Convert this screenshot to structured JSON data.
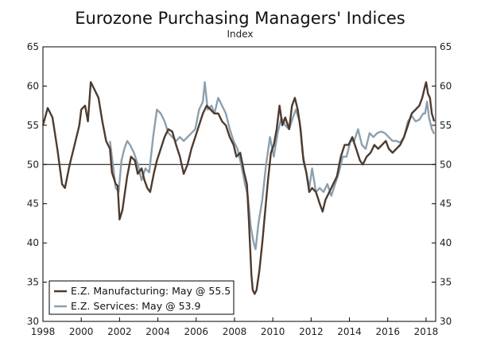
{
  "chart_data": {
    "type": "line",
    "title": "Eurozone Purchasing Managers' Indices",
    "subtitle": "Index",
    "xlabel": "",
    "ylabel": "",
    "xlim": [
      1998,
      2018.5
    ],
    "ylim": [
      30,
      65
    ],
    "x_ticks": [
      "1998",
      "2000",
      "2002",
      "2004",
      "2006",
      "2008",
      "2010",
      "2012",
      "2014",
      "2016",
      "2018"
    ],
    "y_ticks": [
      "30",
      "35",
      "40",
      "45",
      "50",
      "55",
      "60",
      "65"
    ],
    "reference_line": 50,
    "legend": [
      "E.Z. Manufacturing: May @ 55.5",
      "E.Z. Services: May @ 53.9"
    ],
    "series": [
      {
        "name": "E.Z. Manufacturing: May @ 55.5",
        "color": "#4d3b2f",
        "points": [
          [
            1998.0,
            55.0
          ],
          [
            1998.25,
            57.2
          ],
          [
            1998.5,
            56.0
          ],
          [
            1998.75,
            52.0
          ],
          [
            1999.0,
            47.5
          ],
          [
            1999.15,
            47.0
          ],
          [
            1999.4,
            50.0
          ],
          [
            1999.6,
            52.0
          ],
          [
            1999.9,
            55.0
          ],
          [
            2000.0,
            57.0
          ],
          [
            2000.2,
            57.5
          ],
          [
            2000.35,
            55.5
          ],
          [
            2000.5,
            60.5
          ],
          [
            2000.7,
            59.5
          ],
          [
            2000.9,
            58.5
          ],
          [
            2001.1,
            55.5
          ],
          [
            2001.3,
            53.0
          ],
          [
            2001.5,
            52.0
          ],
          [
            2001.6,
            49.0
          ],
          [
            2001.8,
            47.5
          ],
          [
            2001.9,
            47.3
          ],
          [
            2002.0,
            43.0
          ],
          [
            2002.15,
            44.2
          ],
          [
            2002.4,
            48.5
          ],
          [
            2002.6,
            51.0
          ],
          [
            2002.8,
            50.5
          ],
          [
            2002.95,
            48.8
          ],
          [
            2003.15,
            49.5
          ],
          [
            2003.3,
            48.0
          ],
          [
            2003.45,
            47.0
          ],
          [
            2003.6,
            46.5
          ],
          [
            2003.8,
            49.0
          ],
          [
            2003.95,
            50.5
          ],
          [
            2004.15,
            52.0
          ],
          [
            2004.35,
            53.5
          ],
          [
            2004.55,
            54.5
          ],
          [
            2004.75,
            54.2
          ],
          [
            2004.95,
            52.5
          ],
          [
            2005.15,
            51.0
          ],
          [
            2005.35,
            48.8
          ],
          [
            2005.55,
            50.0
          ],
          [
            2005.75,
            52.0
          ],
          [
            2005.95,
            53.5
          ],
          [
            2006.15,
            55.0
          ],
          [
            2006.35,
            56.5
          ],
          [
            2006.55,
            57.5
          ],
          [
            2006.75,
            57.0
          ],
          [
            2006.95,
            56.5
          ],
          [
            2007.15,
            56.5
          ],
          [
            2007.35,
            55.5
          ],
          [
            2007.55,
            55.0
          ],
          [
            2007.75,
            53.5
          ],
          [
            2007.95,
            52.5
          ],
          [
            2008.1,
            51.0
          ],
          [
            2008.3,
            51.5
          ],
          [
            2008.5,
            49.0
          ],
          [
            2008.65,
            47.5
          ],
          [
            2008.75,
            43.0
          ],
          [
            2008.88,
            36.0
          ],
          [
            2008.95,
            34.0
          ],
          [
            2009.05,
            33.5
          ],
          [
            2009.15,
            34.0
          ],
          [
            2009.3,
            36.5
          ],
          [
            2009.45,
            40.0
          ],
          [
            2009.6,
            44.0
          ],
          [
            2009.75,
            48.0
          ],
          [
            2009.9,
            51.5
          ],
          [
            2010.05,
            52.5
          ],
          [
            2010.2,
            54.5
          ],
          [
            2010.35,
            57.5
          ],
          [
            2010.5,
            55.0
          ],
          [
            2010.65,
            56.0
          ],
          [
            2010.85,
            54.5
          ],
          [
            2011.0,
            57.5
          ],
          [
            2011.15,
            58.5
          ],
          [
            2011.3,
            57.0
          ],
          [
            2011.45,
            54.5
          ],
          [
            2011.6,
            50.5
          ],
          [
            2011.75,
            49.0
          ],
          [
            2011.9,
            46.5
          ],
          [
            2012.05,
            47.0
          ],
          [
            2012.25,
            46.5
          ],
          [
            2012.45,
            45.0
          ],
          [
            2012.6,
            44.0
          ],
          [
            2012.75,
            45.5
          ],
          [
            2012.95,
            46.5
          ],
          [
            2013.15,
            47.5
          ],
          [
            2013.35,
            48.5
          ],
          [
            2013.55,
            51.0
          ],
          [
            2013.75,
            52.5
          ],
          [
            2013.95,
            52.5
          ],
          [
            2014.15,
            53.5
          ],
          [
            2014.35,
            52.0
          ],
          [
            2014.55,
            50.5
          ],
          [
            2014.7,
            50.0
          ],
          [
            2014.9,
            51.0
          ],
          [
            2015.1,
            51.5
          ],
          [
            2015.3,
            52.5
          ],
          [
            2015.5,
            52.0
          ],
          [
            2015.7,
            52.5
          ],
          [
            2015.9,
            53.0
          ],
          [
            2016.05,
            52.0
          ],
          [
            2016.25,
            51.5
          ],
          [
            2016.45,
            52.0
          ],
          [
            2016.65,
            52.5
          ],
          [
            2016.85,
            53.5
          ],
          [
            2017.05,
            55.0
          ],
          [
            2017.25,
            56.5
          ],
          [
            2017.45,
            57.0
          ],
          [
            2017.65,
            57.5
          ],
          [
            2017.8,
            58.5
          ],
          [
            2017.95,
            60.0
          ],
          [
            2018.0,
            60.5
          ],
          [
            2018.1,
            59.0
          ],
          [
            2018.2,
            58.5
          ],
          [
            2018.3,
            56.5
          ],
          [
            2018.42,
            55.5
          ]
        ]
      },
      {
        "name": "E.Z. Services: May @ 53.9",
        "color": "#8ca0ae",
        "points": [
          [
            2001.5,
            53.0
          ],
          [
            2001.65,
            50.0
          ],
          [
            2001.8,
            47.0
          ],
          [
            2001.95,
            46.5
          ],
          [
            2002.1,
            50.5
          ],
          [
            2002.25,
            52.0
          ],
          [
            2002.4,
            53.0
          ],
          [
            2002.55,
            52.5
          ],
          [
            2002.75,
            51.5
          ],
          [
            2002.95,
            50.0
          ],
          [
            2003.15,
            48.0
          ],
          [
            2003.35,
            49.5
          ],
          [
            2003.55,
            49.0
          ],
          [
            2003.75,
            53.5
          ],
          [
            2003.95,
            57.0
          ],
          [
            2004.15,
            56.5
          ],
          [
            2004.35,
            55.5
          ],
          [
            2004.55,
            54.0
          ],
          [
            2004.75,
            53.5
          ],
          [
            2004.95,
            53.0
          ],
          [
            2005.15,
            53.5
          ],
          [
            2005.35,
            53.0
          ],
          [
            2005.55,
            53.5
          ],
          [
            2005.75,
            54.0
          ],
          [
            2005.95,
            54.5
          ],
          [
            2006.15,
            57.0
          ],
          [
            2006.35,
            58.0
          ],
          [
            2006.45,
            60.5
          ],
          [
            2006.6,
            57.0
          ],
          [
            2006.8,
            57.5
          ],
          [
            2006.95,
            56.5
          ],
          [
            2007.15,
            58.5
          ],
          [
            2007.35,
            57.5
          ],
          [
            2007.55,
            56.5
          ],
          [
            2007.75,
            54.5
          ],
          [
            2007.95,
            53.0
          ],
          [
            2008.15,
            52.0
          ],
          [
            2008.35,
            50.0
          ],
          [
            2008.55,
            47.5
          ],
          [
            2008.7,
            46.0
          ],
          [
            2008.85,
            42.0
          ],
          [
            2009.0,
            40.0
          ],
          [
            2009.1,
            39.2
          ],
          [
            2009.25,
            42.5
          ],
          [
            2009.45,
            45.5
          ],
          [
            2009.65,
            50.0
          ],
          [
            2009.85,
            53.5
          ],
          [
            2010.05,
            51.0
          ],
          [
            2010.25,
            54.0
          ],
          [
            2010.45,
            56.0
          ],
          [
            2010.65,
            55.0
          ],
          [
            2010.85,
            54.5
          ],
          [
            2011.05,
            56.0
          ],
          [
            2011.2,
            57.0
          ],
          [
            2011.4,
            55.5
          ],
          [
            2011.55,
            51.5
          ],
          [
            2011.75,
            49.0
          ],
          [
            2011.9,
            47.0
          ],
          [
            2012.05,
            49.5
          ],
          [
            2012.25,
            46.5
          ],
          [
            2012.45,
            47.0
          ],
          [
            2012.65,
            46.5
          ],
          [
            2012.85,
            47.5
          ],
          [
            2013.05,
            46.0
          ],
          [
            2013.25,
            47.5
          ],
          [
            2013.45,
            49.0
          ],
          [
            2013.65,
            51.0
          ],
          [
            2013.85,
            51.0
          ],
          [
            2014.05,
            53.0
          ],
          [
            2014.25,
            53.0
          ],
          [
            2014.45,
            54.5
          ],
          [
            2014.65,
            52.5
          ],
          [
            2014.85,
            52.0
          ],
          [
            2015.05,
            54.0
          ],
          [
            2015.25,
            53.5
          ],
          [
            2015.45,
            54.0
          ],
          [
            2015.65,
            54.2
          ],
          [
            2015.85,
            54.0
          ],
          [
            2016.05,
            53.5
          ],
          [
            2016.25,
            53.0
          ],
          [
            2016.45,
            53.0
          ],
          [
            2016.65,
            52.8
          ],
          [
            2016.85,
            53.5
          ],
          [
            2017.05,
            55.5
          ],
          [
            2017.25,
            56.2
          ],
          [
            2017.45,
            55.5
          ],
          [
            2017.65,
            55.7
          ],
          [
            2017.85,
            56.5
          ],
          [
            2017.95,
            56.5
          ],
          [
            2018.05,
            58.0
          ],
          [
            2018.15,
            56.0
          ],
          [
            2018.3,
            54.5
          ],
          [
            2018.42,
            53.9
          ]
        ]
      }
    ]
  }
}
